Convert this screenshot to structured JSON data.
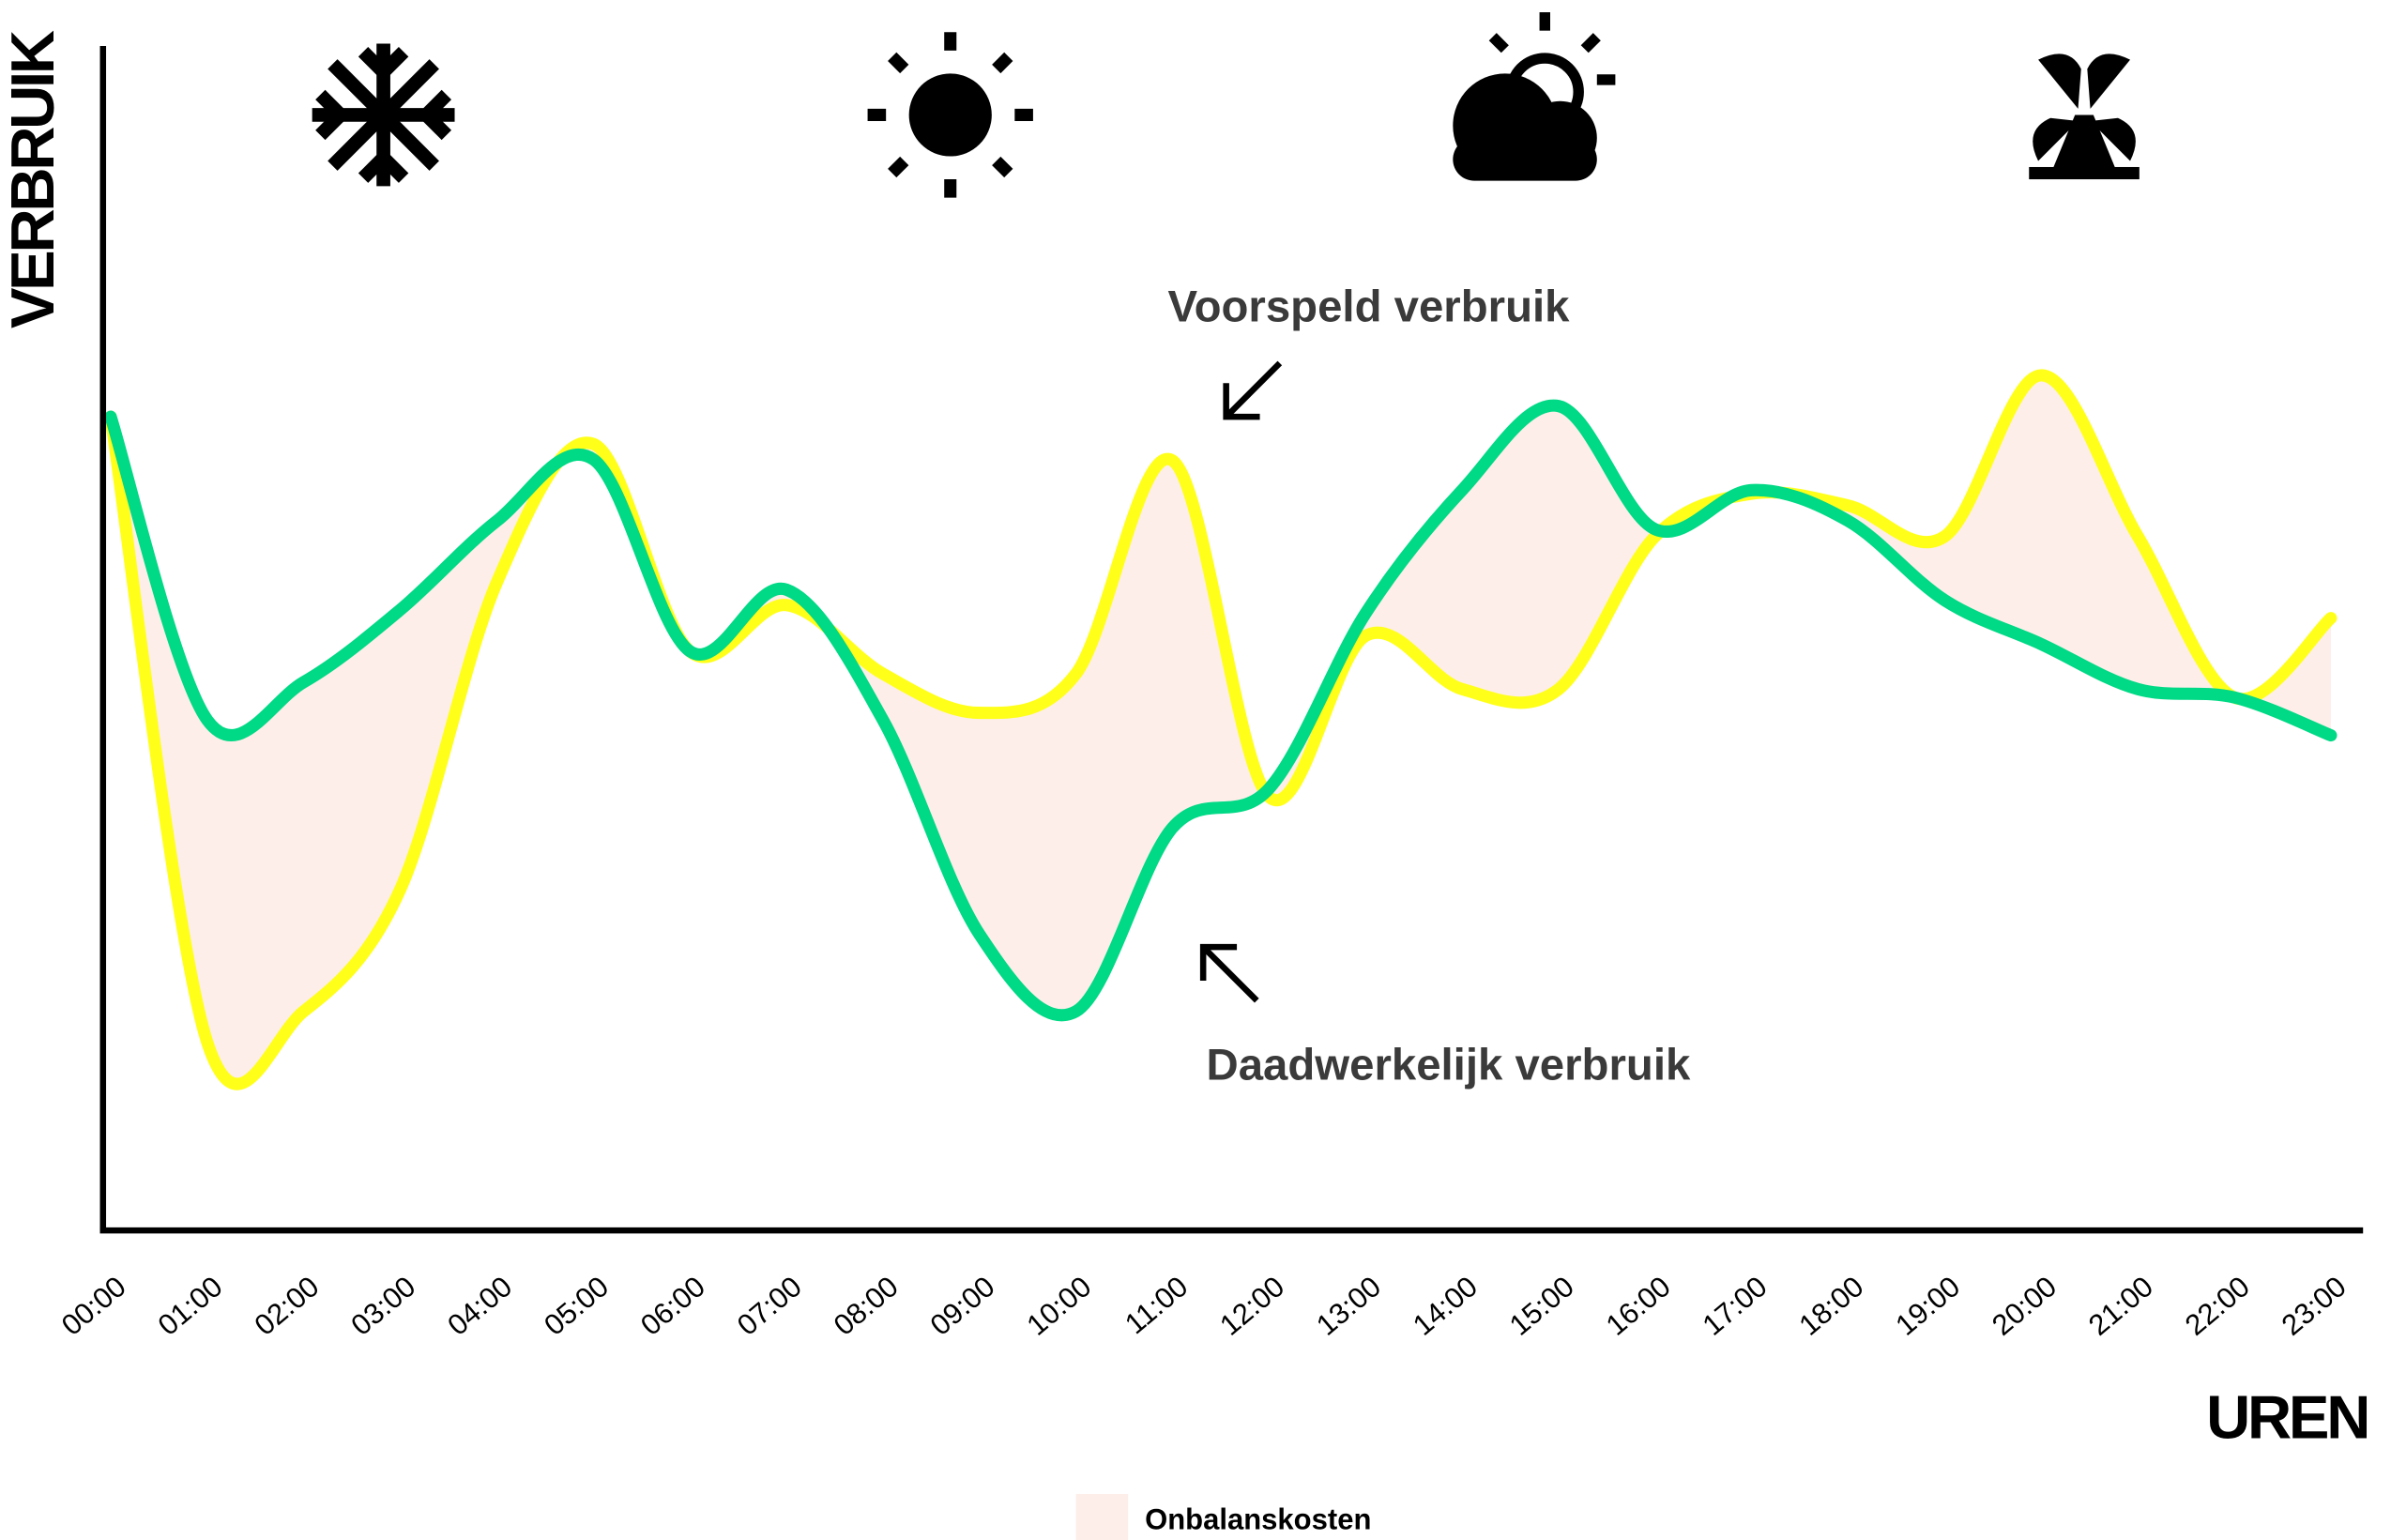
{
  "chart_data": {
    "type": "line",
    "y_label": "VERBRUIK",
    "x_label": "UREN",
    "categories": [
      "00:00",
      "01:00",
      "02:00",
      "03:00",
      "04:00",
      "05:00",
      "06:00",
      "07:00",
      "08:00",
      "09:00",
      "10:00",
      "11:00",
      "12:00",
      "13:00",
      "14:00",
      "15:00",
      "16:00",
      "17:00",
      "18:00",
      "19:00",
      "20:00",
      "21:00",
      "22:00",
      "23:00"
    ],
    "series": [
      {
        "name": "Voorspeld verbruik",
        "color": "#ffff1a",
        "values": [
          68.7,
          15.9,
          18.5,
          28.8,
          54.7,
          66.4,
          48.9,
          52.8,
          47,
          43.7,
          47,
          65,
          36.6,
          50.2,
          45.7,
          45.7,
          58.6,
          62.2,
          61.2,
          58.6,
          72.2,
          58.6,
          45,
          51.7
        ]
      },
      {
        "name": "Daadwerkelijk verbruik",
        "color": "#00d985",
        "values": [
          68.7,
          43.1,
          46.3,
          52.4,
          59.9,
          65.1,
          48.9,
          54.1,
          43.1,
          25,
          18.5,
          34,
          37.3,
          52.1,
          62.5,
          69.6,
          59.2,
          62.5,
          59.9,
          53.2,
          49.5,
          45.7,
          45,
          41.8
        ]
      }
    ],
    "fill_label": "Onbalanskosten",
    "fill_color": "#fdeee9",
    "ylim": [
      0,
      100
    ]
  }
}
